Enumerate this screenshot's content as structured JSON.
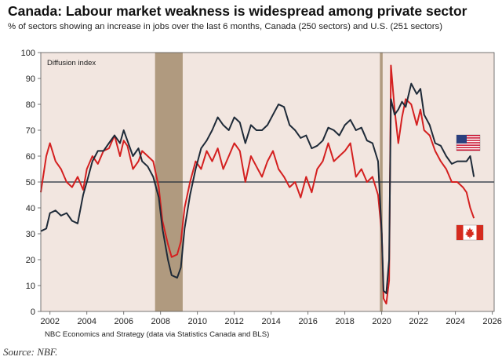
{
  "title": "Canada: Labour market weakness is widespread among private sector",
  "subtitle": "% of sectors showing an increase in jobs over the last 6 months, Canada (250 sectors) and U.S. (251 sectors)",
  "note": "NBC Economics and Strategy (data via Statistics Canada and BLS)",
  "source": "Source: NBF.",
  "chart_data": {
    "type": "line",
    "ylabel": "Diffusion index",
    "xlim": [
      2001.5,
      2026.1
    ],
    "ylim": [
      0,
      100
    ],
    "yticks": [
      "0",
      "10",
      "20",
      "30",
      "40",
      "50",
      "60",
      "70",
      "80",
      "90",
      "100"
    ],
    "xticks": [
      "2002",
      "2004",
      "2006",
      "2008",
      "2010",
      "2012",
      "2014",
      "2016",
      "2018",
      "2020",
      "2022",
      "2024",
      "2026"
    ],
    "reference_line": 50,
    "grid": false,
    "background": "#f2e6e0",
    "recessions": [
      [
        2007.7,
        2009.2
      ],
      [
        2019.9,
        2020.05
      ]
    ],
    "recession_color": "#b09a7f",
    "flags": [
      "U.S.",
      "Canada"
    ],
    "series": [
      {
        "name": "U.S.",
        "color": "#1e2a38",
        "x": [
          2001.5,
          2001.8,
          2002.0,
          2002.3,
          2002.6,
          2002.9,
          2003.2,
          2003.5,
          2003.8,
          2004.0,
          2004.3,
          2004.6,
          2004.9,
          2005.2,
          2005.5,
          2005.8,
          2006.0,
          2006.2,
          2006.5,
          2006.8,
          2007.0,
          2007.3,
          2007.6,
          2007.9,
          2008.1,
          2008.4,
          2008.6,
          2008.9,
          2009.1,
          2009.3,
          2009.6,
          2009.9,
          2010.2,
          2010.5,
          2010.8,
          2011.1,
          2011.4,
          2011.7,
          2012.0,
          2012.3,
          2012.6,
          2012.9,
          2013.2,
          2013.5,
          2013.8,
          2014.1,
          2014.4,
          2014.7,
          2015.0,
          2015.3,
          2015.6,
          2015.9,
          2016.2,
          2016.5,
          2016.8,
          2017.1,
          2017.4,
          2017.7,
          2018.0,
          2018.3,
          2018.6,
          2018.9,
          2019.2,
          2019.5,
          2019.8,
          2020.0,
          2020.1,
          2020.25,
          2020.4,
          2020.5,
          2020.7,
          2020.9,
          2021.1,
          2021.3,
          2021.6,
          2021.9,
          2022.1,
          2022.3,
          2022.6,
          2022.9,
          2023.2,
          2023.5,
          2023.8,
          2024.1,
          2024.4,
          2024.6,
          2024.8,
          2025.0
        ],
        "values": [
          31,
          32,
          38,
          39,
          37,
          38,
          35,
          34,
          45,
          50,
          58,
          62,
          62,
          65,
          68,
          65,
          70,
          66,
          60,
          63,
          58,
          56,
          52,
          44,
          32,
          20,
          14,
          13,
          17,
          32,
          45,
          55,
          63,
          66,
          70,
          75,
          72,
          70,
          75,
          73,
          65,
          72,
          70,
          70,
          72,
          76,
          80,
          79,
          72,
          70,
          67,
          68,
          63,
          64,
          66,
          71,
          70,
          68,
          72,
          74,
          70,
          71,
          66,
          65,
          58,
          30,
          8,
          7,
          20,
          82,
          76,
          78,
          81,
          79,
          88,
          84,
          86,
          76,
          72,
          65,
          64,
          60,
          57,
          58,
          58,
          58,
          60,
          52
        ]
      },
      {
        "name": "Canada",
        "color": "#d42020",
        "x": [
          2001.5,
          2001.8,
          2002.0,
          2002.3,
          2002.6,
          2002.9,
          2003.2,
          2003.5,
          2003.8,
          2004.0,
          2004.3,
          2004.6,
          2004.9,
          2005.2,
          2005.5,
          2005.8,
          2006.0,
          2006.2,
          2006.5,
          2006.8,
          2007.0,
          2007.3,
          2007.6,
          2007.9,
          2008.1,
          2008.4,
          2008.6,
          2008.9,
          2009.1,
          2009.3,
          2009.6,
          2009.9,
          2010.2,
          2010.5,
          2010.8,
          2011.1,
          2011.4,
          2011.7,
          2012.0,
          2012.3,
          2012.6,
          2012.9,
          2013.2,
          2013.5,
          2013.8,
          2014.1,
          2014.4,
          2014.7,
          2015.0,
          2015.3,
          2015.6,
          2015.9,
          2016.2,
          2016.5,
          2016.8,
          2017.1,
          2017.4,
          2017.7,
          2018.0,
          2018.3,
          2018.6,
          2018.9,
          2019.2,
          2019.5,
          2019.8,
          2020.0,
          2020.1,
          2020.25,
          2020.4,
          2020.5,
          2020.7,
          2020.9,
          2021.1,
          2021.3,
          2021.6,
          2021.9,
          2022.1,
          2022.3,
          2022.6,
          2022.9,
          2023.2,
          2023.5,
          2023.8,
          2024.1,
          2024.4,
          2024.6,
          2024.8,
          2025.0
        ],
        "values": [
          46,
          60,
          65,
          58,
          55,
          50,
          48,
          52,
          47,
          55,
          60,
          57,
          62,
          63,
          68,
          60,
          66,
          64,
          55,
          58,
          62,
          60,
          58,
          48,
          35,
          26,
          21,
          22,
          27,
          40,
          50,
          58,
          55,
          62,
          58,
          63,
          55,
          60,
          65,
          62,
          50,
          60,
          56,
          52,
          58,
          62,
          55,
          52,
          48,
          50,
          44,
          52,
          46,
          55,
          58,
          65,
          58,
          60,
          62,
          65,
          52,
          55,
          50,
          52,
          45,
          30,
          5,
          3,
          12,
          95,
          78,
          65,
          75,
          82,
          80,
          72,
          78,
          70,
          68,
          62,
          58,
          55,
          50,
          50,
          48,
          46,
          40,
          36
        ]
      }
    ]
  }
}
